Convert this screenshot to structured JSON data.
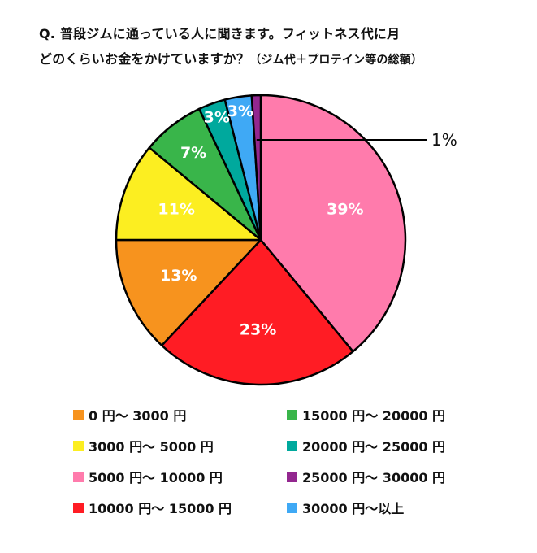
{
  "question": {
    "line1": "Q. 普段ジムに通っている人に聞きます。フィットネス代に月",
    "line2": "どのくらいお金をかけていますか？",
    "line2_note": "（ジム代＋プロテイン等の総額）"
  },
  "chart_data": {
    "type": "pie",
    "start": "12 o'clock",
    "direction": "clockwise",
    "legend_position": "bottom",
    "slices": [
      {
        "label": "5000 円～ 10000 円",
        "value": 39,
        "display": "39%",
        "color": "#FF7BAC"
      },
      {
        "label": "10000 円～ 15000 円",
        "value": 23,
        "display": "23%",
        "color": "#FF1C24"
      },
      {
        "label": "0 円～ 3000 円",
        "value": 13,
        "display": "13%",
        "color": "#F7931E"
      },
      {
        "label": "3000 円～ 5000 円",
        "value": 11,
        "display": "11%",
        "color": "#FCEE21"
      },
      {
        "label": "15000 円～ 20000 円",
        "value": 7,
        "display": "7%",
        "color": "#39B54A"
      },
      {
        "label": "20000 円～ 25000 円",
        "value": 3,
        "display": "3%",
        "color": "#00A99D"
      },
      {
        "label": "30000 円～以上",
        "value": 3,
        "display": "3%",
        "color": "#3FA9F5"
      },
      {
        "label": "25000 円～ 30000 円",
        "value": 1,
        "display": "1%",
        "color": "#93278F"
      }
    ]
  },
  "legend": [
    {
      "label": "0 円～ 3000 円",
      "color": "#F7931E"
    },
    {
      "label": "3000 円～ 5000 円",
      "color": "#FCEE21"
    },
    {
      "label": "5000 円～ 10000 円",
      "color": "#FF7BAC"
    },
    {
      "label": "10000 円～ 15000 円",
      "color": "#FF1C24"
    },
    {
      "label": "15000 円～ 20000 円",
      "color": "#39B54A"
    },
    {
      "label": "20000 円～ 25000 円",
      "color": "#00A99D"
    },
    {
      "label": "25000 円～ 30000 円",
      "color": "#93278F"
    },
    {
      "label": "30000 円～以上",
      "color": "#3FA9F5"
    }
  ]
}
